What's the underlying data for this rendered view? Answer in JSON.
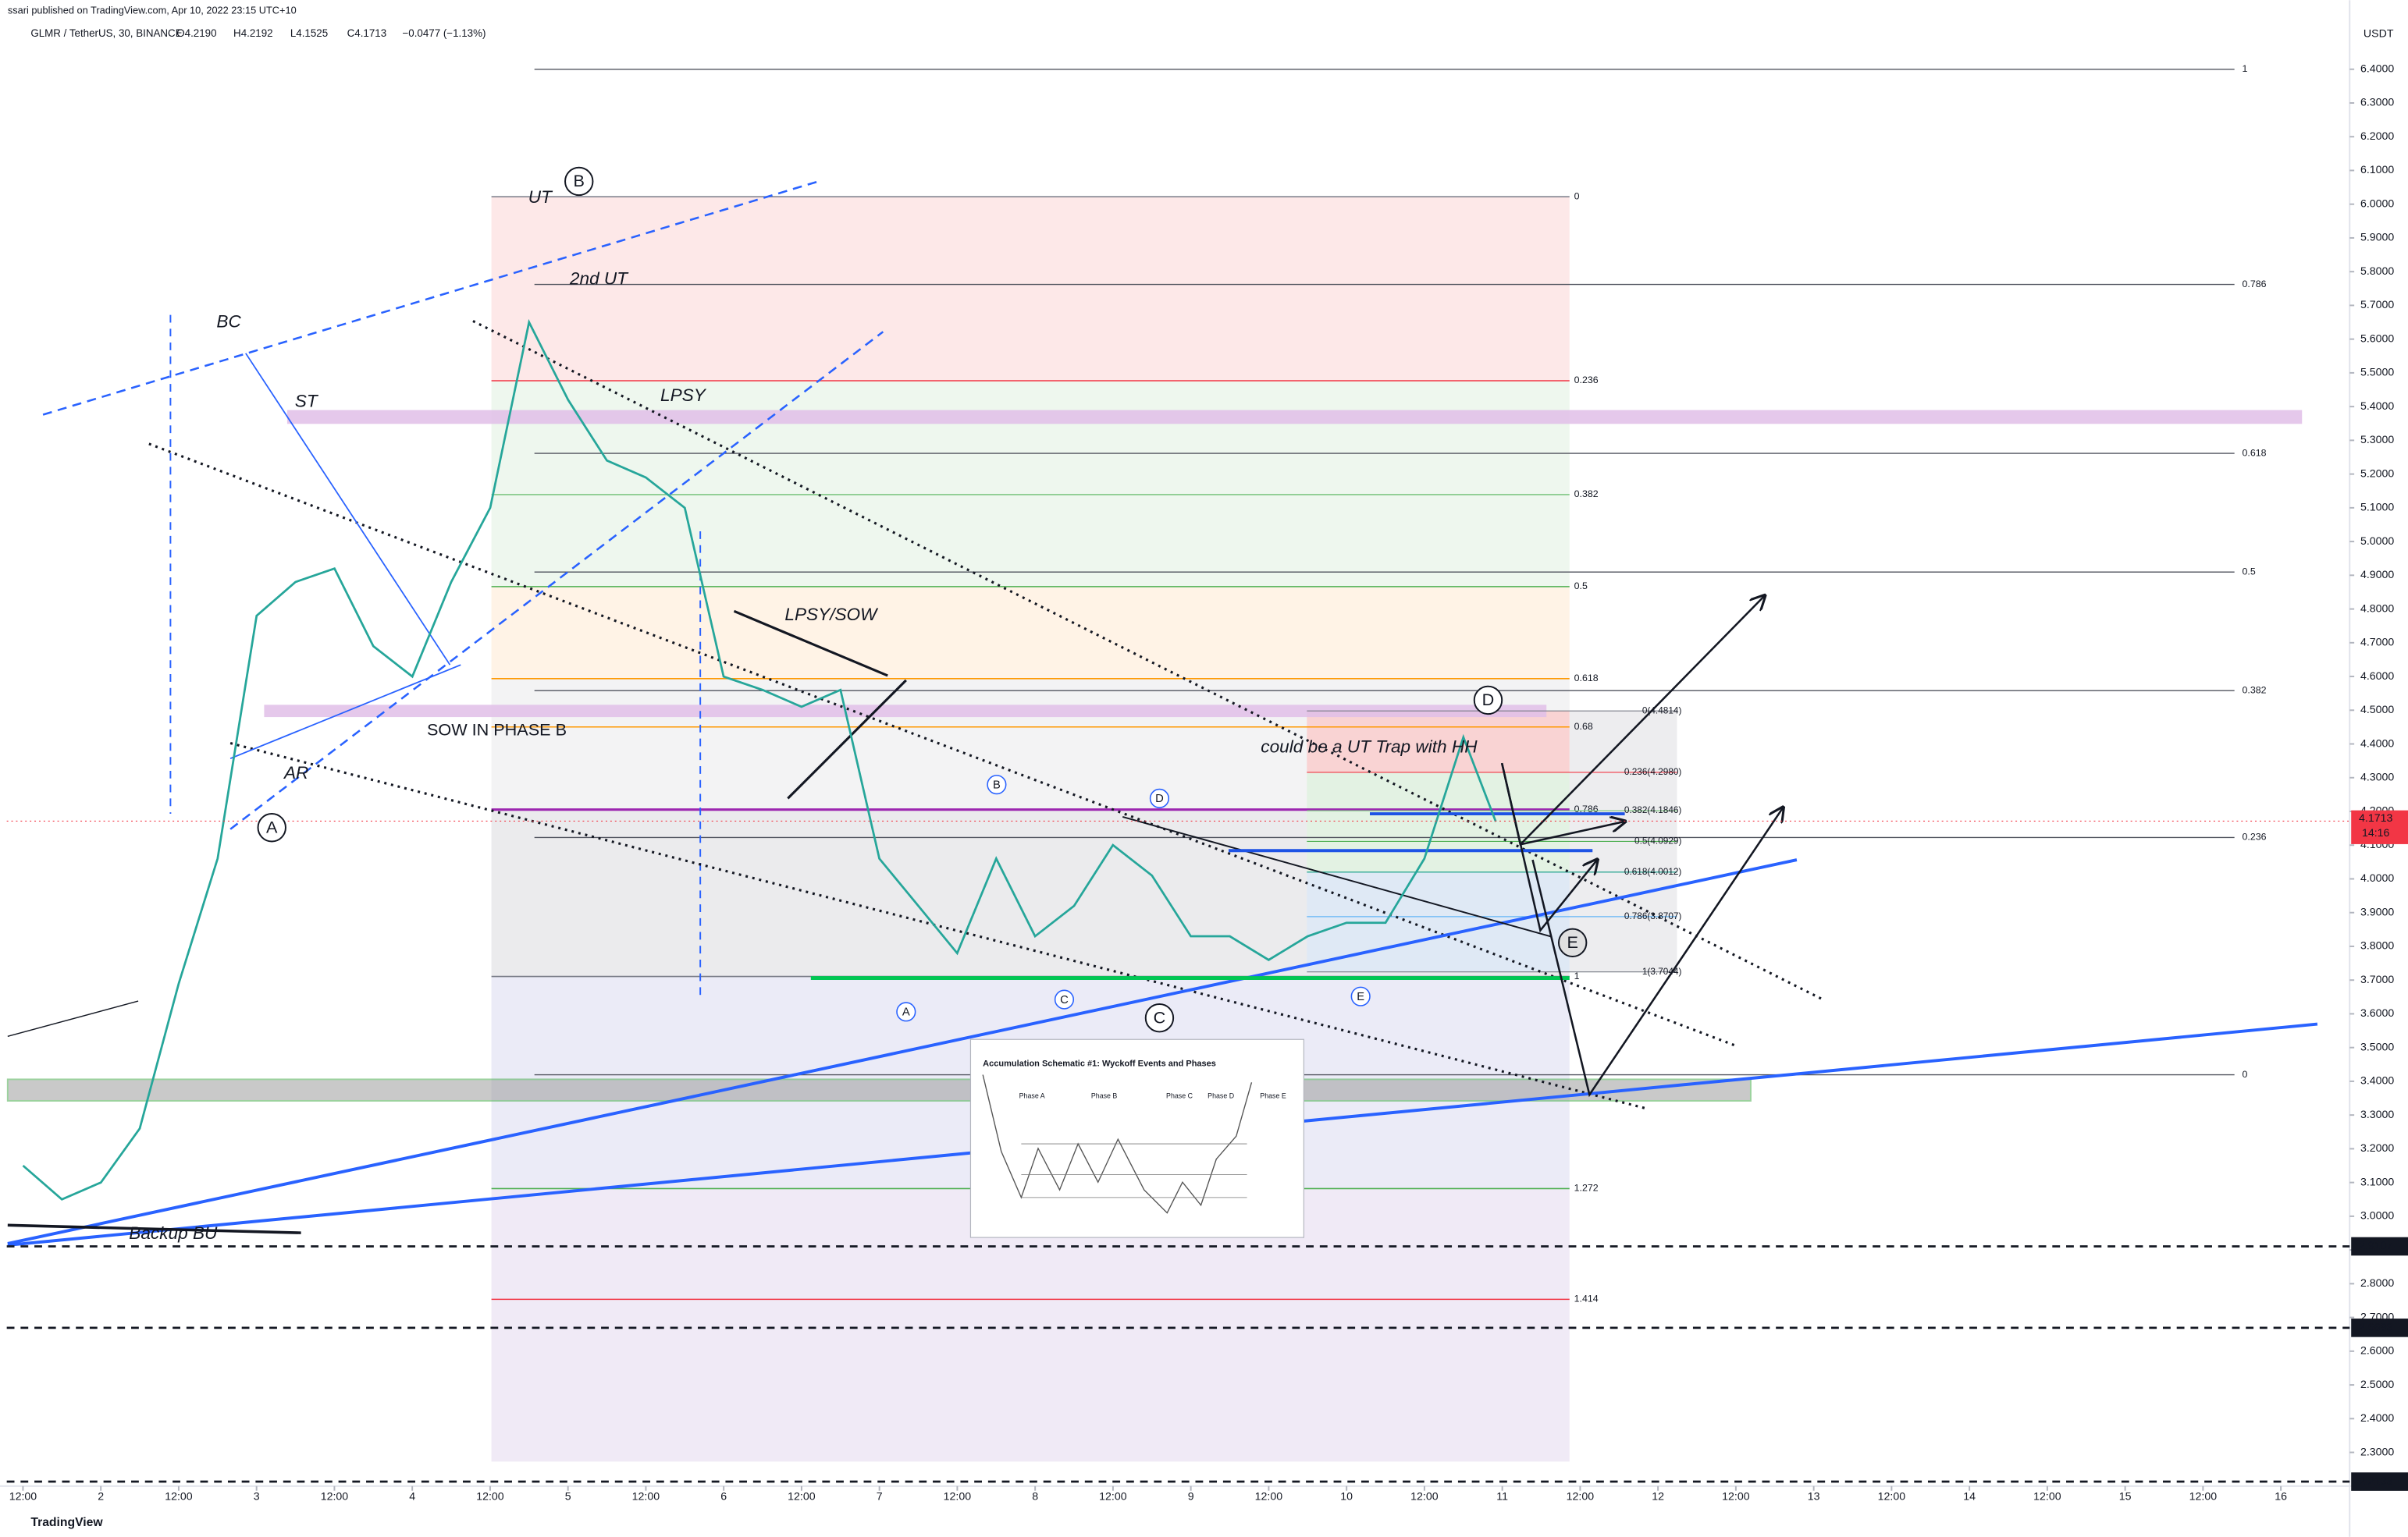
{
  "header": {
    "publisher": "ssari published on TradingView.com, Apr 10, 2022 23:15 UTC+10",
    "symbol": "GLMR / TetherUS, 30, BINANCE",
    "open": "O4.2190",
    "high": "H4.2192",
    "low": "L4.1525",
    "close": "C4.1713",
    "change": "−0.0477 (−1.13%)",
    "currency": "USDT"
  },
  "chart_data": {
    "type": "line",
    "color": "#26a69a",
    "grid": false,
    "x": [
      0,
      6,
      12,
      18,
      24,
      30,
      36,
      42,
      48,
      54,
      60,
      66,
      72,
      78,
      84,
      90,
      96,
      102,
      108,
      114,
      120,
      126,
      132,
      138,
      144,
      150,
      156,
      162,
      168,
      174,
      180,
      186,
      192,
      198,
      204,
      210,
      216,
      222,
      227
    ],
    "values": [
      3.15,
      3.05,
      3.1,
      3.26,
      3.69,
      4.06,
      4.78,
      4.88,
      4.92,
      4.69,
      4.6,
      4.88,
      5.1,
      5.65,
      5.42,
      5.24,
      5.19,
      5.1,
      4.6,
      4.56,
      4.51,
      4.56,
      4.06,
      3.92,
      3.78,
      4.06,
      3.83,
      3.92,
      4.1,
      4.01,
      3.83,
      3.83,
      3.76,
      3.83,
      3.87,
      3.87,
      4.06,
      4.42,
      4.17
    ],
    "xlim": [
      -2.5,
      358.6
    ],
    "xticks": [
      {
        "value": 0,
        "label": "12:00"
      },
      {
        "value": 12,
        "label": "2"
      },
      {
        "value": 24,
        "label": "12:00"
      },
      {
        "value": 36,
        "label": "3"
      },
      {
        "value": 48,
        "label": "12:00"
      },
      {
        "value": 60,
        "label": "4"
      },
      {
        "value": 72,
        "label": "12:00"
      },
      {
        "value": 84,
        "label": "5"
      },
      {
        "value": 96,
        "label": "12:00"
      },
      {
        "value": 108,
        "label": "6"
      },
      {
        "value": 120,
        "label": "12:00"
      },
      {
        "value": 132,
        "label": "7"
      },
      {
        "value": 144,
        "label": "12:00"
      },
      {
        "value": 156,
        "label": "8"
      },
      {
        "value": 168,
        "label": "12:00"
      },
      {
        "value": 180,
        "label": "9"
      },
      {
        "value": 192,
        "label": "12:00"
      },
      {
        "value": 204,
        "label": "10"
      },
      {
        "value": 216,
        "label": "12:00"
      },
      {
        "value": 228,
        "label": "11"
      },
      {
        "value": 240,
        "label": "12:00"
      },
      {
        "value": 252,
        "label": "12"
      },
      {
        "value": 264,
        "label": "12:00"
      },
      {
        "value": 276,
        "label": "13"
      },
      {
        "value": 288,
        "label": "12:00"
      },
      {
        "value": 300,
        "label": "14"
      },
      {
        "value": 312,
        "label": "12:00"
      },
      {
        "value": 324,
        "label": "15"
      },
      {
        "value": 336,
        "label": "12:00"
      },
      {
        "value": 348,
        "label": "16"
      }
    ],
    "ylim": [
      2.2,
      6.55
    ],
    "yticks": [
      {
        "value": 6.4,
        "label": "6.4000"
      },
      {
        "value": 6.3,
        "label": "6.3000"
      },
      {
        "value": 6.2,
        "label": "6.2000"
      },
      {
        "value": 6.1,
        "label": "6.1000"
      },
      {
        "value": 6.0,
        "label": "6.0000"
      },
      {
        "value": 5.9,
        "label": "5.9000"
      },
      {
        "value": 5.8,
        "label": "5.8000"
      },
      {
        "value": 5.7,
        "label": "5.7000"
      },
      {
        "value": 5.6,
        "label": "5.6000"
      },
      {
        "value": 5.5,
        "label": "5.5000"
      },
      {
        "value": 5.4,
        "label": "5.4000"
      },
      {
        "value": 5.3,
        "label": "5.3000"
      },
      {
        "value": 5.2,
        "label": "5.2000"
      },
      {
        "value": 5.1,
        "label": "5.1000"
      },
      {
        "value": 5.0,
        "label": "5.0000"
      },
      {
        "value": 4.9,
        "label": "4.9000"
      },
      {
        "value": 4.8,
        "label": "4.8000"
      },
      {
        "value": 4.7,
        "label": "4.7000"
      },
      {
        "value": 4.6,
        "label": "4.6000"
      },
      {
        "value": 4.5,
        "label": "4.5000"
      },
      {
        "value": 4.4,
        "label": "4.4000"
      },
      {
        "value": 4.3,
        "label": "4.3000"
      },
      {
        "value": 4.2,
        "label": "4.2000"
      },
      {
        "value": 4.1,
        "label": "4.1000"
      },
      {
        "value": 4.0,
        "label": "4.0000"
      },
      {
        "value": 3.9,
        "label": "3.9000"
      },
      {
        "value": 3.8,
        "label": "3.8000"
      },
      {
        "value": 3.7,
        "label": "3.7000"
      },
      {
        "value": 3.6,
        "label": "3.6000"
      },
      {
        "value": 3.5,
        "label": "3.5000"
      },
      {
        "value": 3.4,
        "label": "3.4000"
      },
      {
        "value": 3.3,
        "label": "3.3000"
      },
      {
        "value": 3.2,
        "label": "3.2000"
      },
      {
        "value": 3.1,
        "label": "3.1000"
      },
      {
        "value": 3.0,
        "label": "3.0000"
      },
      {
        "value": 2.9,
        "label": "2.9000"
      },
      {
        "value": 2.8,
        "label": "2.8000"
      },
      {
        "value": 2.7,
        "label": "2.7000"
      },
      {
        "value": 2.6,
        "label": "2.6000"
      },
      {
        "value": 2.5,
        "label": "2.5000"
      },
      {
        "value": 2.4,
        "label": "2.4000"
      },
      {
        "value": 2.3,
        "label": "2.3000"
      }
    ],
    "last_price": 4.1713,
    "countdown": "14:16",
    "price_lines": [
      2.9107,
      2.6693,
      2.2133
    ]
  },
  "fib_left": [
    0,
    0.236,
    0.382,
    0.5,
    0.618,
    0.68,
    0.786,
    1,
    1.272,
    1.414
  ],
  "fib_right": [
    1,
    0.786,
    0.618,
    0.5,
    0.382,
    0.236,
    0
  ],
  "fib_small": [
    "0(4.4814)",
    "0.236(4.2980)",
    "0.382(4.1846)",
    "0.5(4.0929)",
    "0.618(4.0012)",
    "0.786(3.8707)",
    "1(3.7044)"
  ],
  "annotations": [
    "UT",
    "2nd UT",
    "BC",
    "ST",
    "AR",
    "LPSY",
    "LPSY/SOW",
    "SOW IN PHASE B",
    "could be a UT Trap with HH",
    "Backup BU"
  ],
  "phase_labels": [
    "A",
    "B",
    "C",
    "D",
    "E"
  ],
  "event_labels": [
    "A",
    "B",
    "C",
    "D",
    "E"
  ],
  "schematic": {
    "title": "Accumulation Schematic #1: Wyckoff Events and Phases",
    "phases": [
      "Phase A",
      "Phase B",
      "Phase C",
      "Phase D",
      "Phase E"
    ]
  },
  "footer": "TradingView"
}
